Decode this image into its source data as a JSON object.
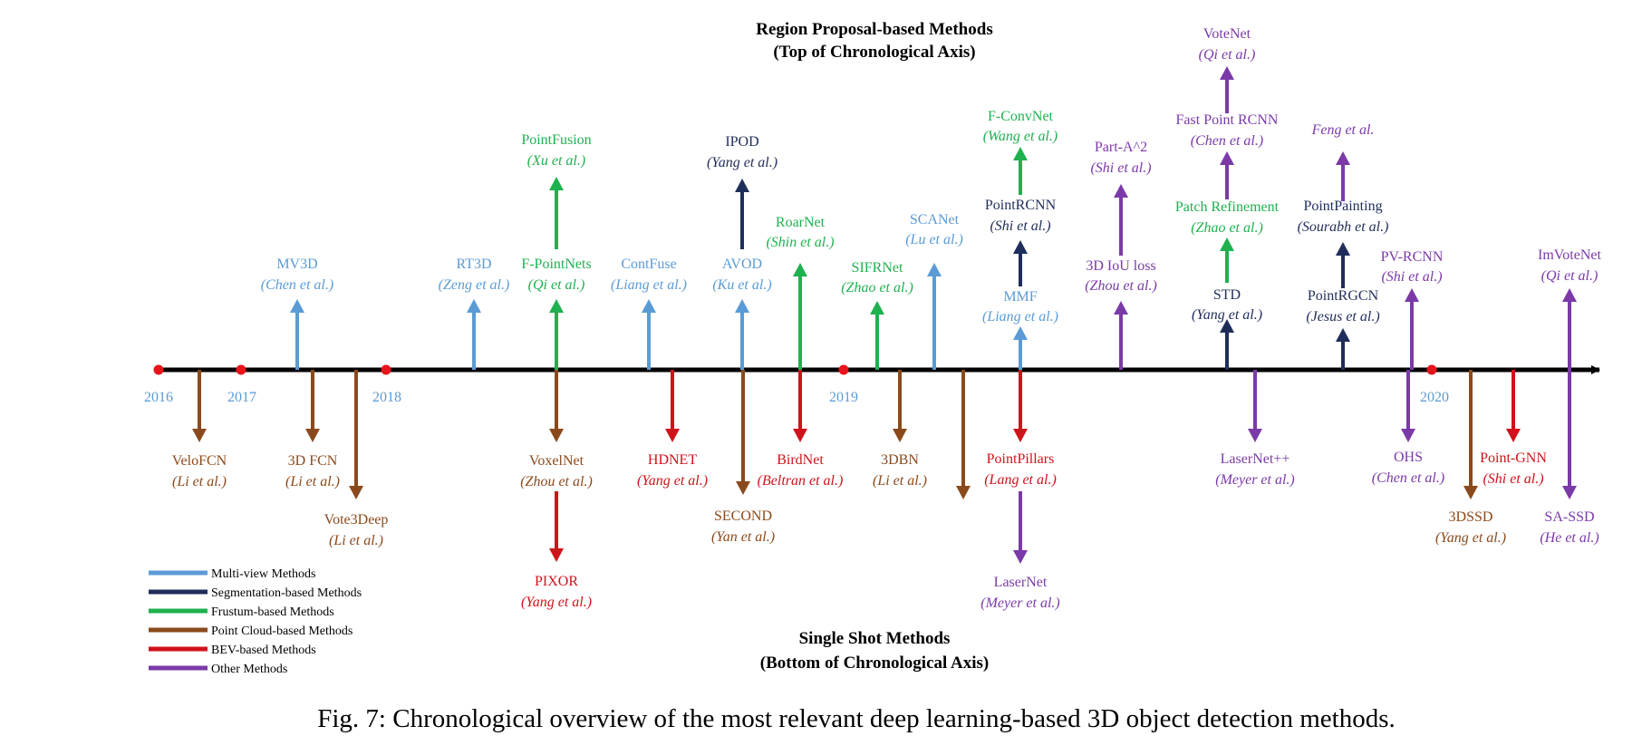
{
  "colors": {
    "multi_view": "#5b9bd5",
    "segmentation": "#1f2d5a",
    "frustum": "#1fb14f",
    "point_cloud": "#8b4a1c",
    "bev": "#d0121b",
    "other": "#7b3aa8",
    "axis": "#000000",
    "year_dot": "#e8131b"
  },
  "headings": {
    "top_line1": "Region Proposal-based Methods",
    "top_line2": "(Top of Chronological Axis)",
    "bottom_line1": "Single Shot Methods",
    "bottom_line2": "(Bottom of Chronological Axis)"
  },
  "caption": "Fig. 7: Chronological overview of the most relevant deep learning-based 3D object detection methods.",
  "years": [
    "2016",
    "2017",
    "2018",
    "2019",
    "2020"
  ],
  "legend": [
    {
      "label": "Multi-view Methods",
      "category": "multi_view"
    },
    {
      "label": "Segmentation-based Methods",
      "category": "segmentation"
    },
    {
      "label": "Frustum-based Methods",
      "category": "frustum"
    },
    {
      "label": "Point Cloud-based Methods",
      "category": "point_cloud"
    },
    {
      "label": "BEV-based Methods",
      "category": "bev"
    },
    {
      "label": "Other Methods",
      "category": "other"
    }
  ],
  "methods": [
    {
      "name": "MV3D",
      "authors": "Chen et al.",
      "category": "multi_view",
      "side": "top"
    },
    {
      "name": "RT3D",
      "authors": "Zeng et al.",
      "category": "multi_view",
      "side": "top"
    },
    {
      "name": "F-PointNets",
      "authors": "Qi et al.",
      "category": "frustum",
      "side": "top"
    },
    {
      "name": "PointFusion",
      "authors": "Xu et al.",
      "category": "frustum",
      "side": "top"
    },
    {
      "name": "ContFuse",
      "authors": "Liang et al.",
      "category": "multi_view",
      "side": "top"
    },
    {
      "name": "AVOD",
      "authors": "Ku et al.",
      "category": "multi_view",
      "side": "top"
    },
    {
      "name": "IPOD",
      "authors": "Yang et al.",
      "category": "segmentation",
      "side": "top"
    },
    {
      "name": "RoarNet",
      "authors": "Shin et al.",
      "category": "frustum",
      "side": "top"
    },
    {
      "name": "SIFRNet",
      "authors": "Zhao et al.",
      "category": "frustum",
      "side": "top"
    },
    {
      "name": "SCANet",
      "authors": "Lu et al.",
      "category": "multi_view",
      "side": "top"
    },
    {
      "name": "MMF",
      "authors": "Liang et al.",
      "category": "multi_view",
      "side": "top"
    },
    {
      "name": "PointRCNN",
      "authors": "Shi et al.",
      "category": "segmentation",
      "side": "top"
    },
    {
      "name": "F-ConvNet",
      "authors": "Wang et al.",
      "category": "frustum",
      "side": "top"
    },
    {
      "name": "3D IoU loss",
      "authors": "Zhou et al.",
      "category": "other",
      "side": "top"
    },
    {
      "name": "Part-A^2",
      "authors": "Shi et al.",
      "category": "other",
      "side": "top"
    },
    {
      "name": "STD",
      "authors": "Yang et al.",
      "category": "segmentation",
      "side": "top"
    },
    {
      "name": "Patch Refinement",
      "authors": "Zhao et al.",
      "category": "frustum",
      "side": "top"
    },
    {
      "name": "Fast Point RCNN",
      "authors": "Chen et al.",
      "category": "other",
      "side": "top"
    },
    {
      "name": "VoteNet",
      "authors": "Qi et al.",
      "category": "other",
      "side": "top"
    },
    {
      "name": "PointRGCN",
      "authors": "Jesus et al.",
      "category": "segmentation",
      "side": "top"
    },
    {
      "name": "PointPainting",
      "authors": "Sourabh et al.",
      "category": "segmentation",
      "side": "top"
    },
    {
      "name": "Feng et al.",
      "authors": "",
      "category": "other",
      "side": "top"
    },
    {
      "name": "PV-RCNN",
      "authors": "Shi et al.",
      "category": "other",
      "side": "top"
    },
    {
      "name": "ImVoteNet",
      "authors": "Qi et al.",
      "category": "other",
      "side": "top"
    },
    {
      "name": "VeloFCN",
      "authors": "Li et al.",
      "category": "point_cloud",
      "side": "bottom"
    },
    {
      "name": "3D FCN",
      "authors": "Li et al.",
      "category": "point_cloud",
      "side": "bottom"
    },
    {
      "name": "Vote3Deep",
      "authors": "Li et al.",
      "category": "point_cloud",
      "side": "bottom"
    },
    {
      "name": "VoxelNet",
      "authors": "Zhou et al.",
      "category": "point_cloud",
      "side": "bottom"
    },
    {
      "name": "PIXOR",
      "authors": "Yang et al.",
      "category": "bev",
      "side": "bottom"
    },
    {
      "name": "HDNET",
      "authors": "Yang et al.",
      "category": "bev",
      "side": "bottom"
    },
    {
      "name": "SECOND",
      "authors": "Yan et al.",
      "category": "point_cloud",
      "side": "bottom"
    },
    {
      "name": "BirdNet",
      "authors": "Beltran et al.",
      "category": "bev",
      "side": "bottom"
    },
    {
      "name": "3DBN",
      "authors": "Li et al.",
      "category": "point_cloud",
      "side": "bottom"
    },
    {
      "name": "PointPillars",
      "authors": "Lang et al.",
      "category": "bev",
      "side": "bottom"
    },
    {
      "name": "LaserNet",
      "authors": "Meyer et al.",
      "category": "other",
      "side": "bottom"
    },
    {
      "name": "LaserNet++",
      "authors": "Meyer et al.",
      "category": "other",
      "side": "bottom"
    },
    {
      "name": "OHS",
      "authors": "Chen et al.",
      "category": "other",
      "side": "bottom"
    },
    {
      "name": "3DSSD",
      "authors": "Yang et al.",
      "category": "point_cloud",
      "side": "bottom"
    },
    {
      "name": "Point-GNN",
      "authors": "Shi et al.",
      "category": "bev",
      "side": "bottom"
    },
    {
      "name": "SA-SSD",
      "authors": "He et al.",
      "category": "other",
      "side": "bottom"
    }
  ]
}
